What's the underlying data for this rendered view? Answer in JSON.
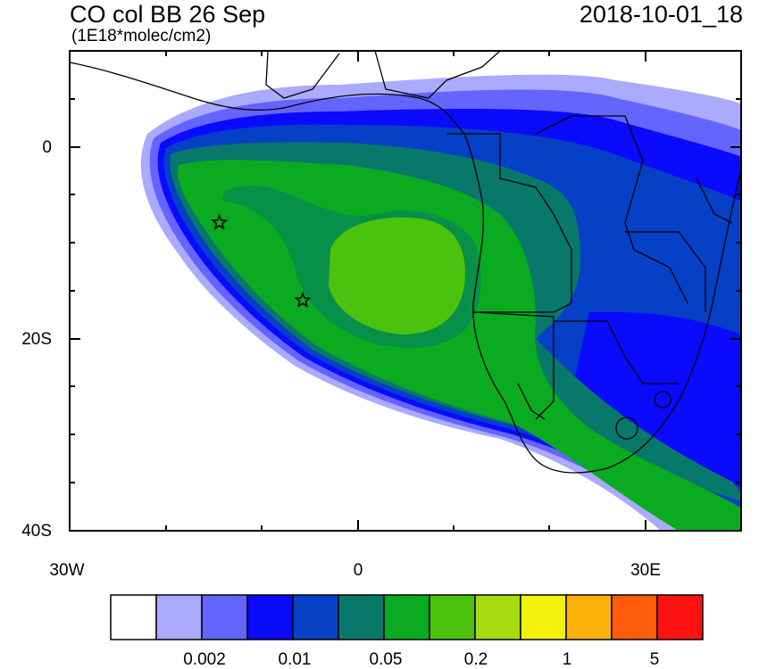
{
  "title": "CO col BB 26 Sep",
  "units": "(1E18*molec/cm2)",
  "timestamp": "2018-10-01_18",
  "axes": {
    "lat_labels": [
      "0",
      "20S",
      "40S"
    ],
    "lon_labels": [
      "30W",
      "0",
      "30E"
    ],
    "lat_range": [
      -40,
      10
    ],
    "lon_range": [
      -30,
      40
    ]
  },
  "markers": [
    {
      "name": "star",
      "lon": -14.4,
      "lat": -7.9
    },
    {
      "name": "star",
      "lon": -5.7,
      "lat": -16.0
    }
  ],
  "colorbar": {
    "colors": [
      "#ffffff",
      "#aaaaff",
      "#6464ff",
      "#0a0aff",
      "#0540c6",
      "#08786a",
      "#0aaa21",
      "#4ac20e",
      "#a4dc10",
      "#f2f20c",
      "#fdb20a",
      "#fd5c08",
      "#fd1212"
    ],
    "labels": [
      "0.002",
      "0.01",
      "0.05",
      "0.2",
      "1",
      "5"
    ]
  },
  "chart_data": {
    "type": "heatmap",
    "title": "CO col BB 26 Sep",
    "subtitle": "(1E18*molec/cm2)",
    "timestamp": "2018-10-01_18",
    "x_ticks": [
      "30W",
      "0",
      "30E"
    ],
    "y_ticks": [
      "0",
      "20S",
      "40S"
    ],
    "xlim": [
      -30,
      40
    ],
    "ylim": [
      -40,
      10
    ],
    "levels_labeled": [
      0.002,
      0.01,
      0.05,
      0.2,
      1,
      5
    ],
    "max_level_region": "0.05-0.1 over South Atlantic near 5E 15S"
  }
}
